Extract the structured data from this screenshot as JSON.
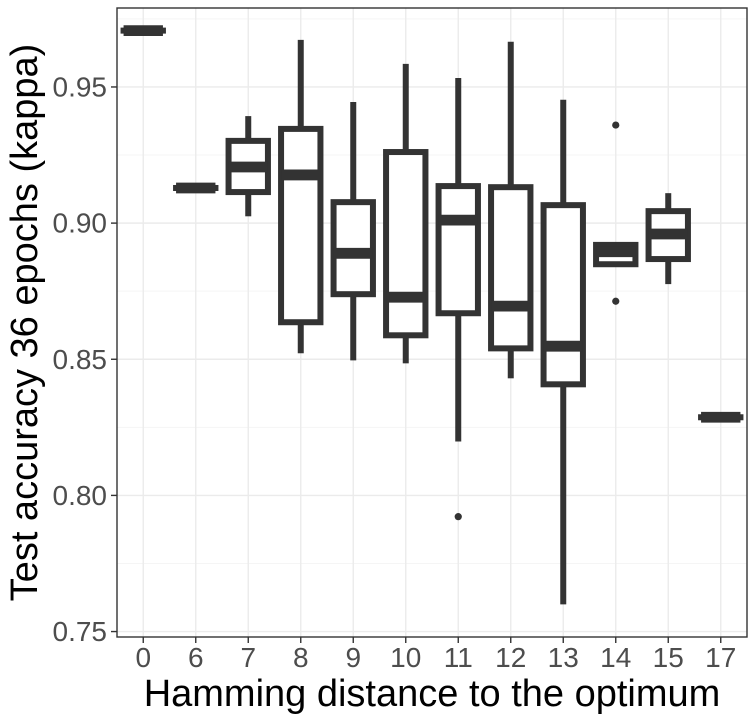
{
  "chart_data": {
    "type": "boxplot",
    "title": "",
    "xlabel": "Hamming distance to the optimum",
    "ylabel": "Test accuracy 36 epochs (kappa)",
    "ylim": [
      0.748,
      0.979
    ],
    "y_ticks": [
      0.75,
      0.8,
      0.85,
      0.9,
      0.95
    ],
    "y_tick_labels": [
      "0.75",
      "0.80",
      "0.85",
      "0.90",
      "0.95"
    ],
    "grid": true,
    "categories": [
      "0",
      "6",
      "7",
      "8",
      "9",
      "10",
      "11",
      "12",
      "13",
      "14",
      "15",
      "17"
    ],
    "boxes": [
      {
        "category": "0",
        "whisker_low": 0.9707,
        "q1": 0.9707,
        "median": 0.9707,
        "q3": 0.9707,
        "whisker_high": 0.9707,
        "outliers": []
      },
      {
        "category": "6",
        "whisker_low": 0.9129,
        "q1": 0.9129,
        "median": 0.9129,
        "q3": 0.9129,
        "whisker_high": 0.9129,
        "outliers": []
      },
      {
        "category": "7",
        "whisker_low": 0.9025,
        "q1": 0.9114,
        "median": 0.9206,
        "q3": 0.9302,
        "whisker_high": 0.9393,
        "outliers": []
      },
      {
        "category": "8",
        "whisker_low": 0.8522,
        "q1": 0.8636,
        "median": 0.9177,
        "q3": 0.9346,
        "whisker_high": 0.9673,
        "outliers": []
      },
      {
        "category": "9",
        "whisker_low": 0.8496,
        "q1": 0.8739,
        "median": 0.8889,
        "q3": 0.9077,
        "whisker_high": 0.9445,
        "outliers": []
      },
      {
        "category": "10",
        "whisker_low": 0.8485,
        "q1": 0.8588,
        "median": 0.8728,
        "q3": 0.9261,
        "whisker_high": 0.9585,
        "outliers": []
      },
      {
        "category": "11",
        "whisker_low": 0.8198,
        "q1": 0.8669,
        "median": 0.9011,
        "q3": 0.9136,
        "whisker_high": 0.9533,
        "outliers": [
          0.7922
        ]
      },
      {
        "category": "12",
        "whisker_low": 0.843,
        "q1": 0.854,
        "median": 0.8695,
        "q3": 0.9132,
        "whisker_high": 0.9666,
        "outliers": []
      },
      {
        "category": "13",
        "whisker_low": 0.76,
        "q1": 0.8408,
        "median": 0.8548,
        "q3": 0.9066,
        "whisker_high": 0.9453,
        "outliers": []
      },
      {
        "category": "14",
        "whisker_low": 0.8849,
        "q1": 0.8849,
        "median": 0.8895,
        "q3": 0.892,
        "whisker_high": 0.892,
        "outliers": [
          0.936,
          0.8713
        ]
      },
      {
        "category": "15",
        "whisker_low": 0.8776,
        "q1": 0.8868,
        "median": 0.896,
        "q3": 0.9044,
        "whisker_high": 0.911,
        "outliers": []
      },
      {
        "category": "17",
        "whisker_low": 0.8287,
        "q1": 0.8287,
        "median": 0.8287,
        "q3": 0.8287,
        "whisker_high": 0.8287,
        "outliers": []
      }
    ],
    "colors": {
      "box": "#333333",
      "grid_major": "#ebebeb",
      "grid_minor": "#f5f5f5",
      "panel_border": "#333333",
      "tick_text": "#4d4d4d",
      "title_text": "#000000",
      "background": "#ffffff"
    }
  }
}
